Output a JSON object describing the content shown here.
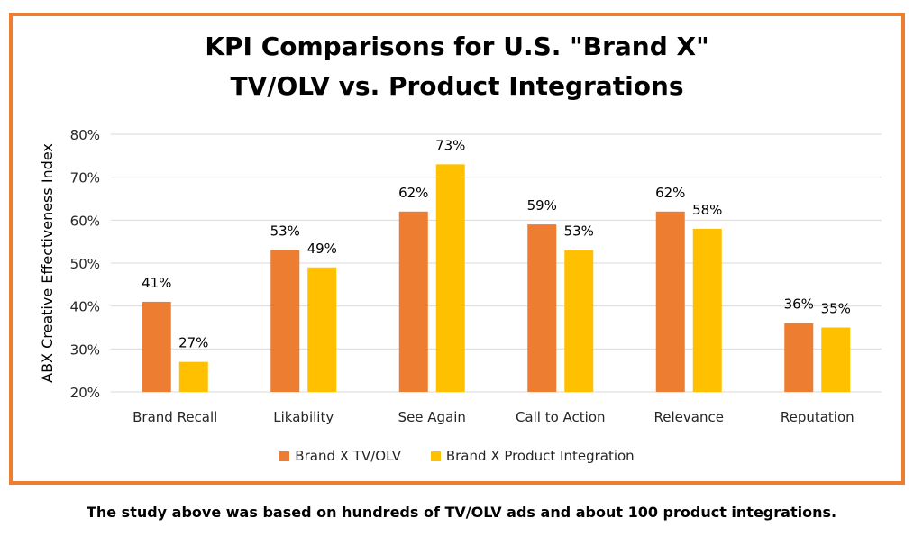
{
  "caption": "The study above was based on hundreds of TV/OLV ads and about 100 product integrations.",
  "colors": {
    "frame": "#ED7D31",
    "series1": "#ED7D31",
    "series2": "#FFC000",
    "grid": "#D9D9D9",
    "text": "#262626"
  },
  "chart_data": {
    "type": "bar",
    "title_lines": [
      "KPI Comparisons for U.S. \"Brand X\"",
      "TV/OLV vs. Product Integrations"
    ],
    "xlabel": "",
    "ylabel": "ABX Creative Effectiveness Index",
    "ylim": [
      20,
      80
    ],
    "yticks": [
      20,
      30,
      40,
      50,
      60,
      70,
      80
    ],
    "ytick_labels": [
      "20%",
      "30%",
      "40%",
      "50%",
      "60%",
      "70%",
      "80%"
    ],
    "grid": true,
    "legend_position": "bottom",
    "categories": [
      "Brand Recall",
      "Likability",
      "See Again",
      "Call to Action",
      "Relevance",
      "Reputation"
    ],
    "series": [
      {
        "name": "Brand X TV/OLV",
        "values": [
          41,
          53,
          62,
          59,
          62,
          36
        ],
        "labels": [
          "41%",
          "53%",
          "62%",
          "59%",
          "62%",
          "36%"
        ]
      },
      {
        "name": "Brand X Product Integration",
        "values": [
          27,
          49,
          73,
          53,
          58,
          35
        ],
        "labels": [
          "27%",
          "49%",
          "73%",
          "53%",
          "58%",
          "35%"
        ]
      }
    ]
  }
}
